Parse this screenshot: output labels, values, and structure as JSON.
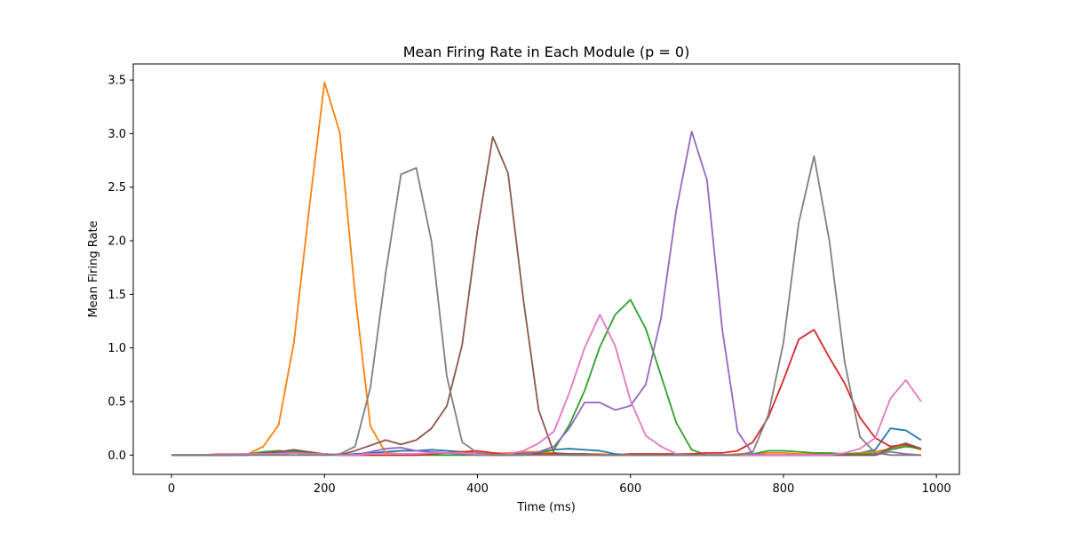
{
  "chart_data": {
    "type": "line",
    "title": "Mean Firing Rate in Each Module (p = 0)",
    "xlabel": "Time (ms)",
    "ylabel": "Mean Firing Rate",
    "xlim": [
      -50,
      1030
    ],
    "ylim": [
      -0.18,
      3.65
    ],
    "xticks": [
      0,
      200,
      400,
      600,
      800,
      1000
    ],
    "xtick_labels": [
      "0",
      "200",
      "400",
      "600",
      "800",
      "1000"
    ],
    "yticks": [
      0.0,
      0.5,
      1.0,
      1.5,
      2.0,
      2.5,
      3.0,
      3.5
    ],
    "ytick_labels": [
      "0.0",
      "0.5",
      "1.0",
      "1.5",
      "2.0",
      "2.5",
      "3.0",
      "3.5"
    ],
    "grid": false,
    "legend": "none",
    "x": [
      0,
      20,
      40,
      60,
      80,
      100,
      120,
      140,
      160,
      180,
      200,
      220,
      240,
      260,
      280,
      300,
      320,
      340,
      360,
      380,
      400,
      420,
      440,
      460,
      480,
      500,
      520,
      540,
      560,
      580,
      600,
      620,
      640,
      660,
      680,
      700,
      720,
      740,
      760,
      780,
      800,
      820,
      840,
      860,
      880,
      900,
      920,
      940,
      960,
      980
    ],
    "series": [
      {
        "color": "#1f77b4",
        "values": [
          0,
          0,
          0,
          0,
          0,
          0.01,
          0.02,
          0.03,
          0.04,
          0.02,
          0.01,
          0,
          0.01,
          0.02,
          0.03,
          0.04,
          0.04,
          0.05,
          0.04,
          0.03,
          0.02,
          0.01,
          0.01,
          0.02,
          0.03,
          0.05,
          0.06,
          0.05,
          0.04,
          0.01,
          0,
          0,
          0,
          0,
          0,
          0,
          0,
          0,
          0,
          0,
          0,
          0,
          0,
          0,
          0.01,
          0.02,
          0.05,
          0.25,
          0.23,
          0.14
        ]
      },
      {
        "color": "#ff7f0e",
        "values": [
          0,
          0,
          0,
          0,
          0,
          0.01,
          0.08,
          0.28,
          1.05,
          2.3,
          3.48,
          3.01,
          1.5,
          0.27,
          0.02,
          0.01,
          0.01,
          0.02,
          0.02,
          0.03,
          0.02,
          0.01,
          0.02,
          0.03,
          0.03,
          0.02,
          0.01,
          0.01,
          0.01,
          0,
          0,
          0,
          0,
          0,
          0,
          0,
          0,
          0.01,
          0.01,
          0.02,
          0.02,
          0.01,
          0.01,
          0.01,
          0.01,
          0.02,
          0.03,
          0.06,
          0.09,
          0.05
        ]
      },
      {
        "color": "#2ca02c",
        "values": [
          0,
          0,
          0,
          0,
          0,
          0.01,
          0.03,
          0.04,
          0.03,
          0.02,
          0.01,
          0,
          0,
          0,
          0,
          0,
          0,
          0,
          0,
          0,
          0,
          0,
          0,
          0,
          0.02,
          0.05,
          0.28,
          0.6,
          1.01,
          1.31,
          1.45,
          1.18,
          0.74,
          0.3,
          0.05,
          0,
          0,
          0,
          0.01,
          0.04,
          0.04,
          0.03,
          0.02,
          0.02,
          0.01,
          0.01,
          0.01,
          0.05,
          0.08,
          0.06
        ]
      },
      {
        "color": "#d62728",
        "values": [
          0,
          0,
          0,
          0,
          0,
          0.01,
          0.01,
          0.01,
          0.02,
          0.01,
          0.01,
          0,
          0,
          0,
          0,
          0,
          0,
          0.01,
          0.02,
          0.03,
          0.04,
          0.02,
          0.01,
          0.01,
          0.01,
          0.01,
          0,
          0,
          0,
          0,
          0.01,
          0.01,
          0.01,
          0.01,
          0.01,
          0.02,
          0.02,
          0.04,
          0.12,
          0.35,
          0.7,
          1.08,
          1.17,
          0.91,
          0.67,
          0.35,
          0.16,
          0.08,
          0.1,
          0.06
        ]
      },
      {
        "color": "#9467bd",
        "values": [
          0,
          0,
          0,
          0,
          0,
          0,
          0.01,
          0.02,
          0.02,
          0.01,
          0,
          0,
          0,
          0.03,
          0.06,
          0.07,
          0.04,
          0.03,
          0.02,
          0.01,
          0,
          0,
          0,
          0.01,
          0.03,
          0.08,
          0.25,
          0.49,
          0.49,
          0.42,
          0.46,
          0.66,
          1.28,
          2.29,
          3.02,
          2.57,
          1.17,
          0.22,
          0.01,
          0,
          0,
          0,
          0,
          0,
          0,
          0,
          0,
          0.03,
          0.01,
          0
        ]
      },
      {
        "color": "#8c564b",
        "values": [
          0,
          0,
          0,
          0,
          0,
          0,
          0.02,
          0.03,
          0.05,
          0.03,
          0.01,
          0,
          0.04,
          0.09,
          0.14,
          0.1,
          0.14,
          0.25,
          0.46,
          1.03,
          2.1,
          2.97,
          2.63,
          1.45,
          0.42,
          0.02,
          0.01,
          0.01,
          0,
          0,
          0,
          0,
          0,
          0,
          0,
          0,
          0,
          0,
          0,
          0,
          0,
          0,
          0,
          0,
          0,
          0,
          0,
          0.07,
          0.11,
          0.06
        ]
      },
      {
        "color": "#e377c2",
        "values": [
          0,
          0,
          0,
          0.01,
          0.01,
          0.01,
          0.01,
          0.01,
          0.02,
          0.01,
          0.01,
          0,
          0,
          0.01,
          0.01,
          0.01,
          0.01,
          0.02,
          0.02,
          0.02,
          0.01,
          0,
          0.01,
          0.04,
          0.11,
          0.22,
          0.58,
          1.0,
          1.31,
          1.02,
          0.51,
          0.18,
          0.08,
          0.01,
          0,
          0,
          0,
          0,
          0,
          0,
          0,
          0,
          0,
          0,
          0.02,
          0.06,
          0.16,
          0.53,
          0.7,
          0.5
        ]
      },
      {
        "color": "#7f7f7f",
        "values": [
          0,
          0,
          0,
          0,
          0,
          0,
          0,
          0,
          0,
          0,
          0,
          0.01,
          0.08,
          0.63,
          1.7,
          2.62,
          2.68,
          1.99,
          0.73,
          0.12,
          0.02,
          0,
          0,
          0,
          0,
          0,
          0,
          0,
          0,
          0,
          0,
          0,
          0,
          0,
          0,
          0,
          0,
          0,
          0.03,
          0.37,
          1.05,
          2.17,
          2.79,
          2.0,
          0.87,
          0.17,
          0.02,
          0,
          0,
          0
        ]
      }
    ]
  }
}
